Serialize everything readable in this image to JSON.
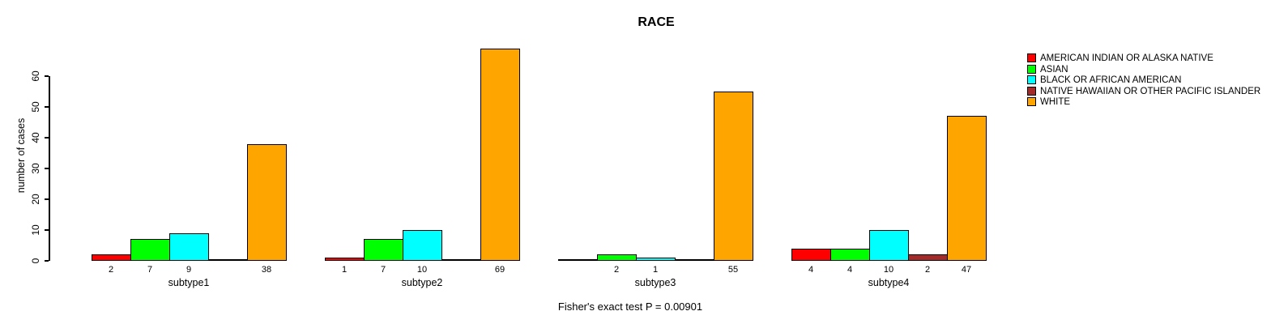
{
  "chart_data": {
    "type": "bar",
    "title": "RACE",
    "ylabel": "number of cases",
    "xlabel": "",
    "subtitle": "Fisher's exact test P = 0.00901",
    "categories": [
      "subtype1",
      "subtype2",
      "subtype3",
      "subtype4"
    ],
    "series": [
      {
        "name": "AMERICAN INDIAN OR ALASKA NATIVE",
        "color": "#FF0000",
        "values": [
          2,
          1,
          0,
          4
        ]
      },
      {
        "name": "ASIAN",
        "color": "#00FF00",
        "values": [
          7,
          7,
          2,
          4
        ]
      },
      {
        "name": "BLACK OR AFRICAN AMERICAN",
        "color": "#00FFFF",
        "values": [
          9,
          10,
          1,
          10
        ]
      },
      {
        "name": "NATIVE HAWAIIAN OR OTHER PACIFIC ISLANDER",
        "color": "#A52A2A",
        "values": [
          0,
          0,
          0,
          2
        ]
      },
      {
        "name": "WHITE",
        "color": "#FFA500",
        "values": [
          38,
          69,
          55,
          47
        ]
      }
    ],
    "yticks": [
      0,
      10,
      20,
      30,
      40,
      50,
      60
    ],
    "ylim": [
      0,
      69
    ],
    "grid": false,
    "legend_position": "right",
    "bar_value_labels": "shown under each bar for values greater than 0"
  }
}
